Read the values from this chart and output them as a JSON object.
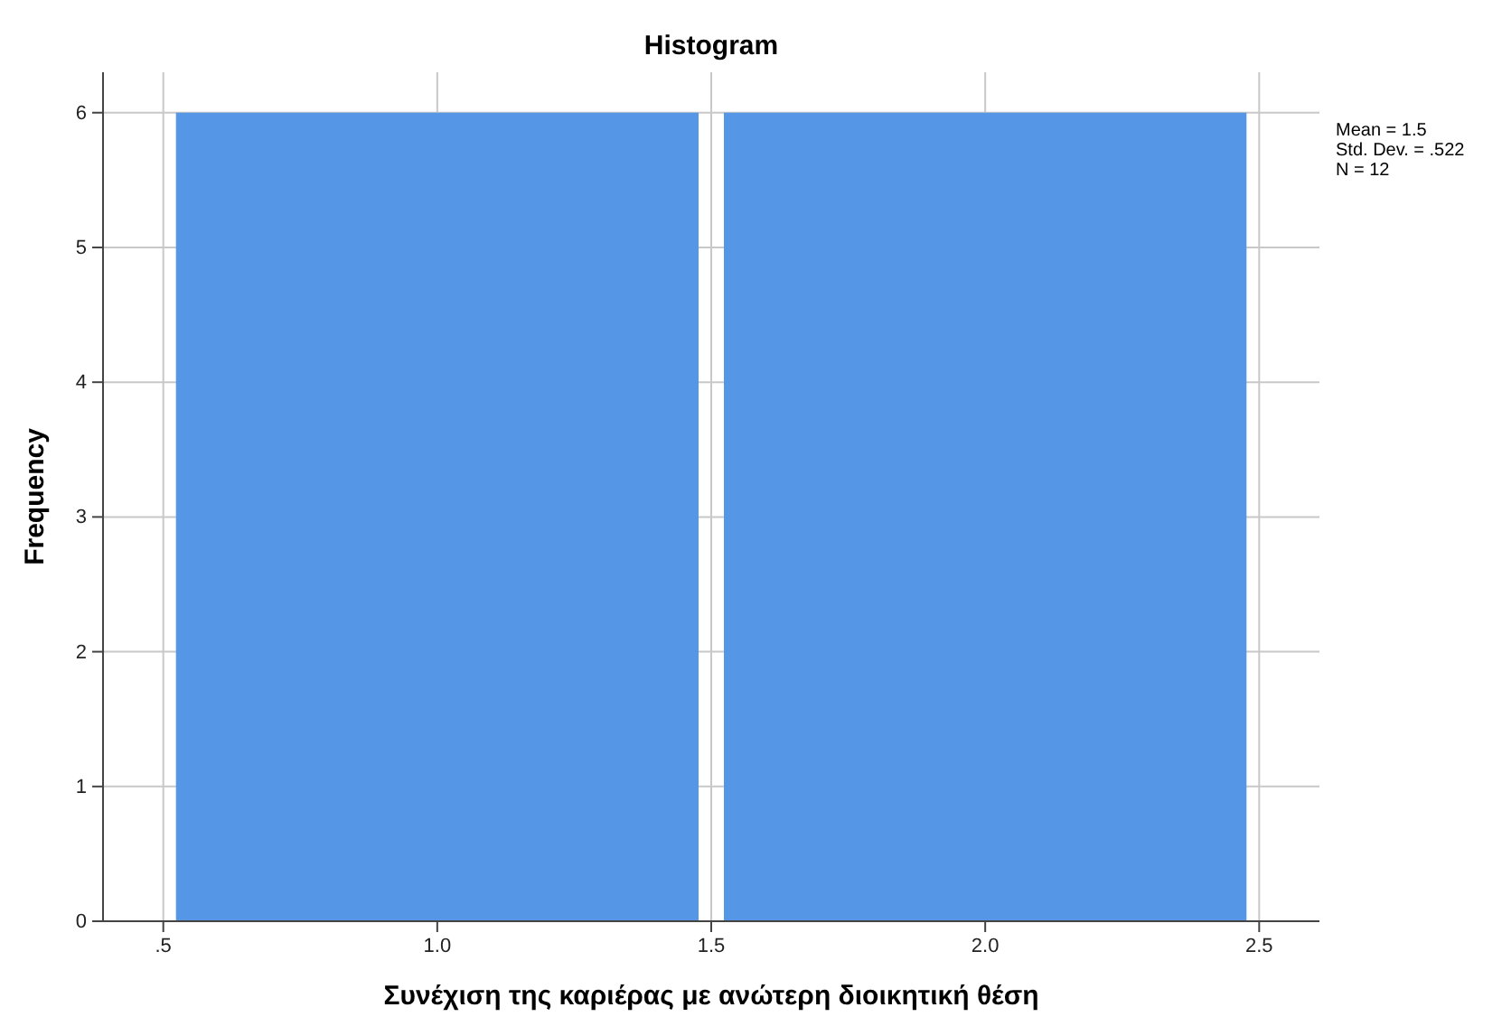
{
  "chart_data": {
    "type": "histogram",
    "title": "Histogram",
    "xlabel": "Συνέχιση της καριέρας με ανώτερη διοικητική θέση",
    "ylabel": "Frequency",
    "bins": [
      0.5,
      1.5,
      2.5
    ],
    "values": [
      6,
      6
    ],
    "color": "#5596e6",
    "xlim": [
      0.39,
      2.61
    ],
    "xticks": [
      {
        "value": 0.5,
        "label": ".5"
      },
      {
        "value": 1,
        "label": "1.0"
      },
      {
        "value": 1.5,
        "label": "1.5"
      },
      {
        "value": 2,
        "label": "2.0"
      },
      {
        "value": 2.5,
        "label": "2.5"
      }
    ],
    "ylim": [
      0,
      6.3
    ],
    "yticks": [
      0,
      1,
      2,
      3,
      4,
      5,
      6
    ],
    "grid": true,
    "annotations": [
      "Mean = 1.5",
      "Std. Dev. = .522",
      "N = 12"
    ]
  }
}
